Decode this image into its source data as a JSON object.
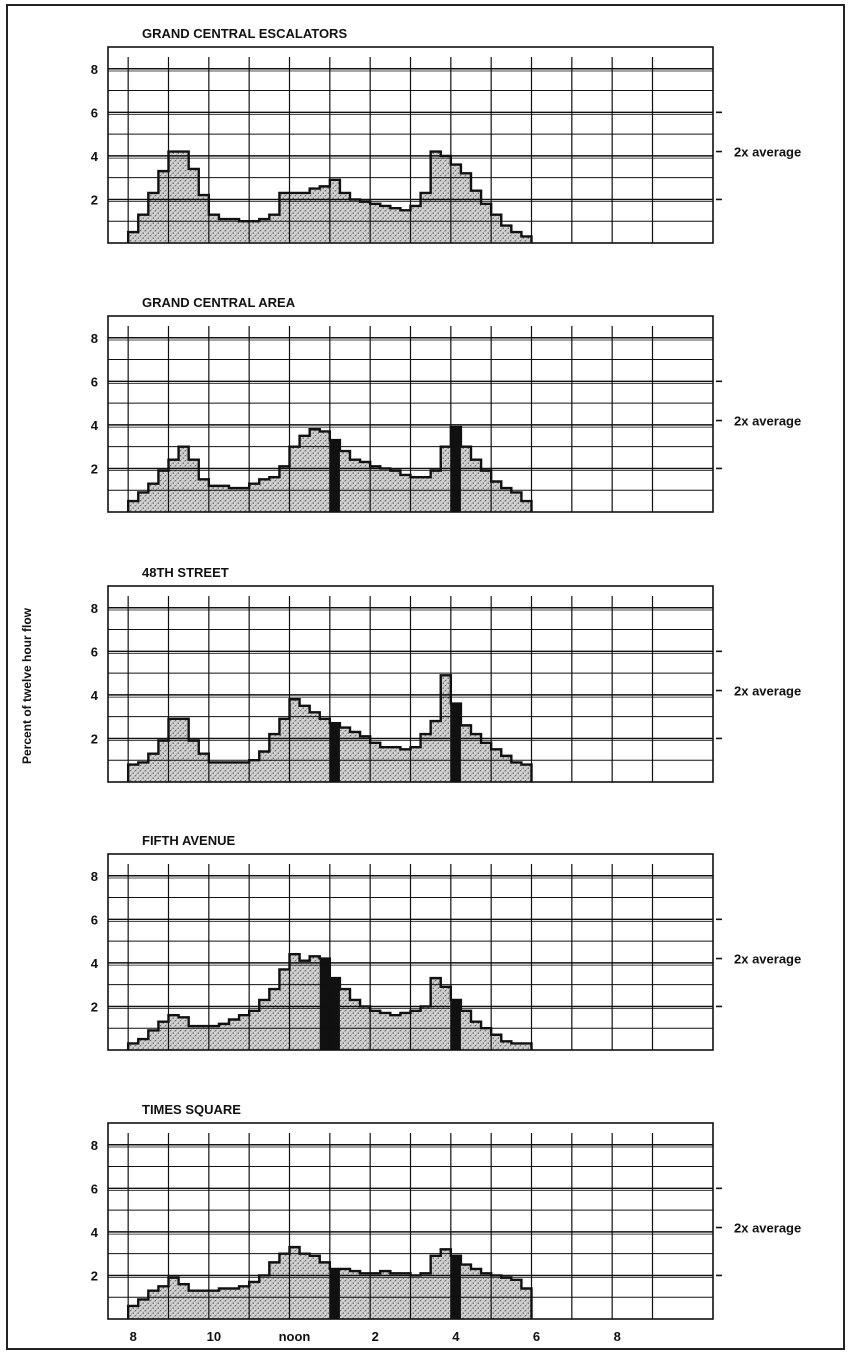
{
  "y_axis_label": "Percent of twelve hour flow",
  "reference_label": "2x average",
  "x_tick_labels": [
    "8",
    "10",
    "noon",
    "2",
    "4",
    "6",
    "8"
  ],
  "y_tick_labels": [
    "2",
    "4",
    "6",
    "8"
  ],
  "colors": {
    "ink": "#111111",
    "stipple": "#888888",
    "background": "#ffffff"
  },
  "chart_data": [
    {
      "type": "bar",
      "title": "GRAND CENTRAL ESCALATORS",
      "xlabel": "",
      "ylabel": "Percent of twelve hour flow",
      "ylim": [
        0,
        9
      ],
      "xlim": [
        "7:30",
        "8:30"
      ],
      "bin_minutes": 15,
      "bins_start": "8:00",
      "values": [
        0.5,
        1.3,
        2.3,
        3.3,
        4.2,
        4.2,
        3.4,
        2.2,
        1.3,
        1.1,
        1.1,
        1.0,
        1.0,
        1.1,
        1.3,
        2.3,
        2.3,
        2.3,
        2.5,
        2.6,
        2.9,
        2.3,
        2.0,
        1.9,
        1.8,
        1.7,
        1.6,
        1.5,
        1.7,
        2.3,
        4.2,
        4.0,
        3.6,
        3.2,
        2.4,
        1.8,
        1.3,
        0.8,
        0.5,
        0.3
      ],
      "reference_line": 4.2,
      "highlight_bins": []
    },
    {
      "type": "bar",
      "title": "GRAND CENTRAL AREA",
      "xlabel": "",
      "ylabel": "Percent of twelve hour flow",
      "ylim": [
        0,
        9
      ],
      "xlim": [
        "7:30",
        "8:30"
      ],
      "bin_minutes": 15,
      "bins_start": "8:00",
      "values": [
        0.5,
        0.9,
        1.3,
        1.9,
        2.4,
        3.0,
        2.4,
        1.5,
        1.2,
        1.2,
        1.1,
        1.1,
        1.3,
        1.5,
        1.6,
        2.1,
        3.0,
        3.5,
        3.8,
        3.7,
        3.3,
        2.8,
        2.4,
        2.3,
        2.1,
        2.0,
        1.9,
        1.7,
        1.6,
        1.6,
        1.9,
        3.0,
        3.9,
        3.0,
        2.4,
        1.9,
        1.4,
        1.1,
        0.9,
        0.5
      ],
      "reference_line": 4.2,
      "highlight_bins": [
        20,
        32
      ]
    },
    {
      "type": "bar",
      "title": "48TH STREET",
      "xlabel": "",
      "ylabel": "Percent of twelve hour flow",
      "ylim": [
        0,
        9
      ],
      "xlim": [
        "7:30",
        "8:30"
      ],
      "bin_minutes": 15,
      "bins_start": "8:00",
      "values": [
        0.8,
        0.9,
        1.3,
        1.9,
        2.9,
        2.9,
        1.9,
        1.3,
        0.9,
        0.9,
        0.9,
        0.9,
        1.0,
        1.4,
        2.2,
        2.9,
        3.8,
        3.5,
        3.2,
        2.9,
        2.7,
        2.5,
        2.3,
        2.1,
        1.8,
        1.6,
        1.6,
        1.5,
        1.6,
        2.2,
        2.8,
        4.9,
        3.6,
        2.6,
        2.2,
        1.8,
        1.5,
        1.2,
        0.9,
        0.8
      ],
      "reference_line": 4.2,
      "highlight_bins": [
        20,
        32
      ]
    },
    {
      "type": "bar",
      "title": "FIFTH AVENUE",
      "xlabel": "",
      "ylabel": "Percent of twelve hour flow",
      "ylim": [
        0,
        9
      ],
      "xlim": [
        "7:30",
        "8:30"
      ],
      "bin_minutes": 15,
      "bins_start": "8:00",
      "values": [
        0.3,
        0.5,
        0.9,
        1.3,
        1.6,
        1.5,
        1.1,
        1.1,
        1.1,
        1.2,
        1.4,
        1.6,
        1.8,
        2.3,
        2.8,
        3.7,
        4.4,
        4.1,
        4.3,
        4.2,
        3.3,
        2.8,
        2.3,
        2.0,
        1.8,
        1.7,
        1.6,
        1.7,
        1.8,
        2.0,
        3.3,
        2.9,
        2.3,
        1.8,
        1.3,
        1.0,
        0.7,
        0.4,
        0.3,
        0.3
      ],
      "reference_line": 4.2,
      "highlight_bins": [
        19,
        20,
        32
      ]
    },
    {
      "type": "bar",
      "title": "TIMES SQUARE",
      "xlabel": "",
      "ylabel": "Percent of twelve hour flow",
      "ylim": [
        0,
        9
      ],
      "xlim": [
        "7:30",
        "8:30"
      ],
      "bin_minutes": 15,
      "bins_start": "8:00",
      "values": [
        0.6,
        0.9,
        1.3,
        1.5,
        1.9,
        1.6,
        1.3,
        1.3,
        1.3,
        1.4,
        1.4,
        1.5,
        1.7,
        2.0,
        2.6,
        3.0,
        3.3,
        3.0,
        2.9,
        2.6,
        2.3,
        2.3,
        2.2,
        2.1,
        2.1,
        2.2,
        2.1,
        2.1,
        2.0,
        2.1,
        2.9,
        3.2,
        2.9,
        2.5,
        2.3,
        2.1,
        2.0,
        1.9,
        1.8,
        1.4
      ],
      "reference_line": 4.2,
      "highlight_bins": [
        20,
        32
      ]
    }
  ]
}
